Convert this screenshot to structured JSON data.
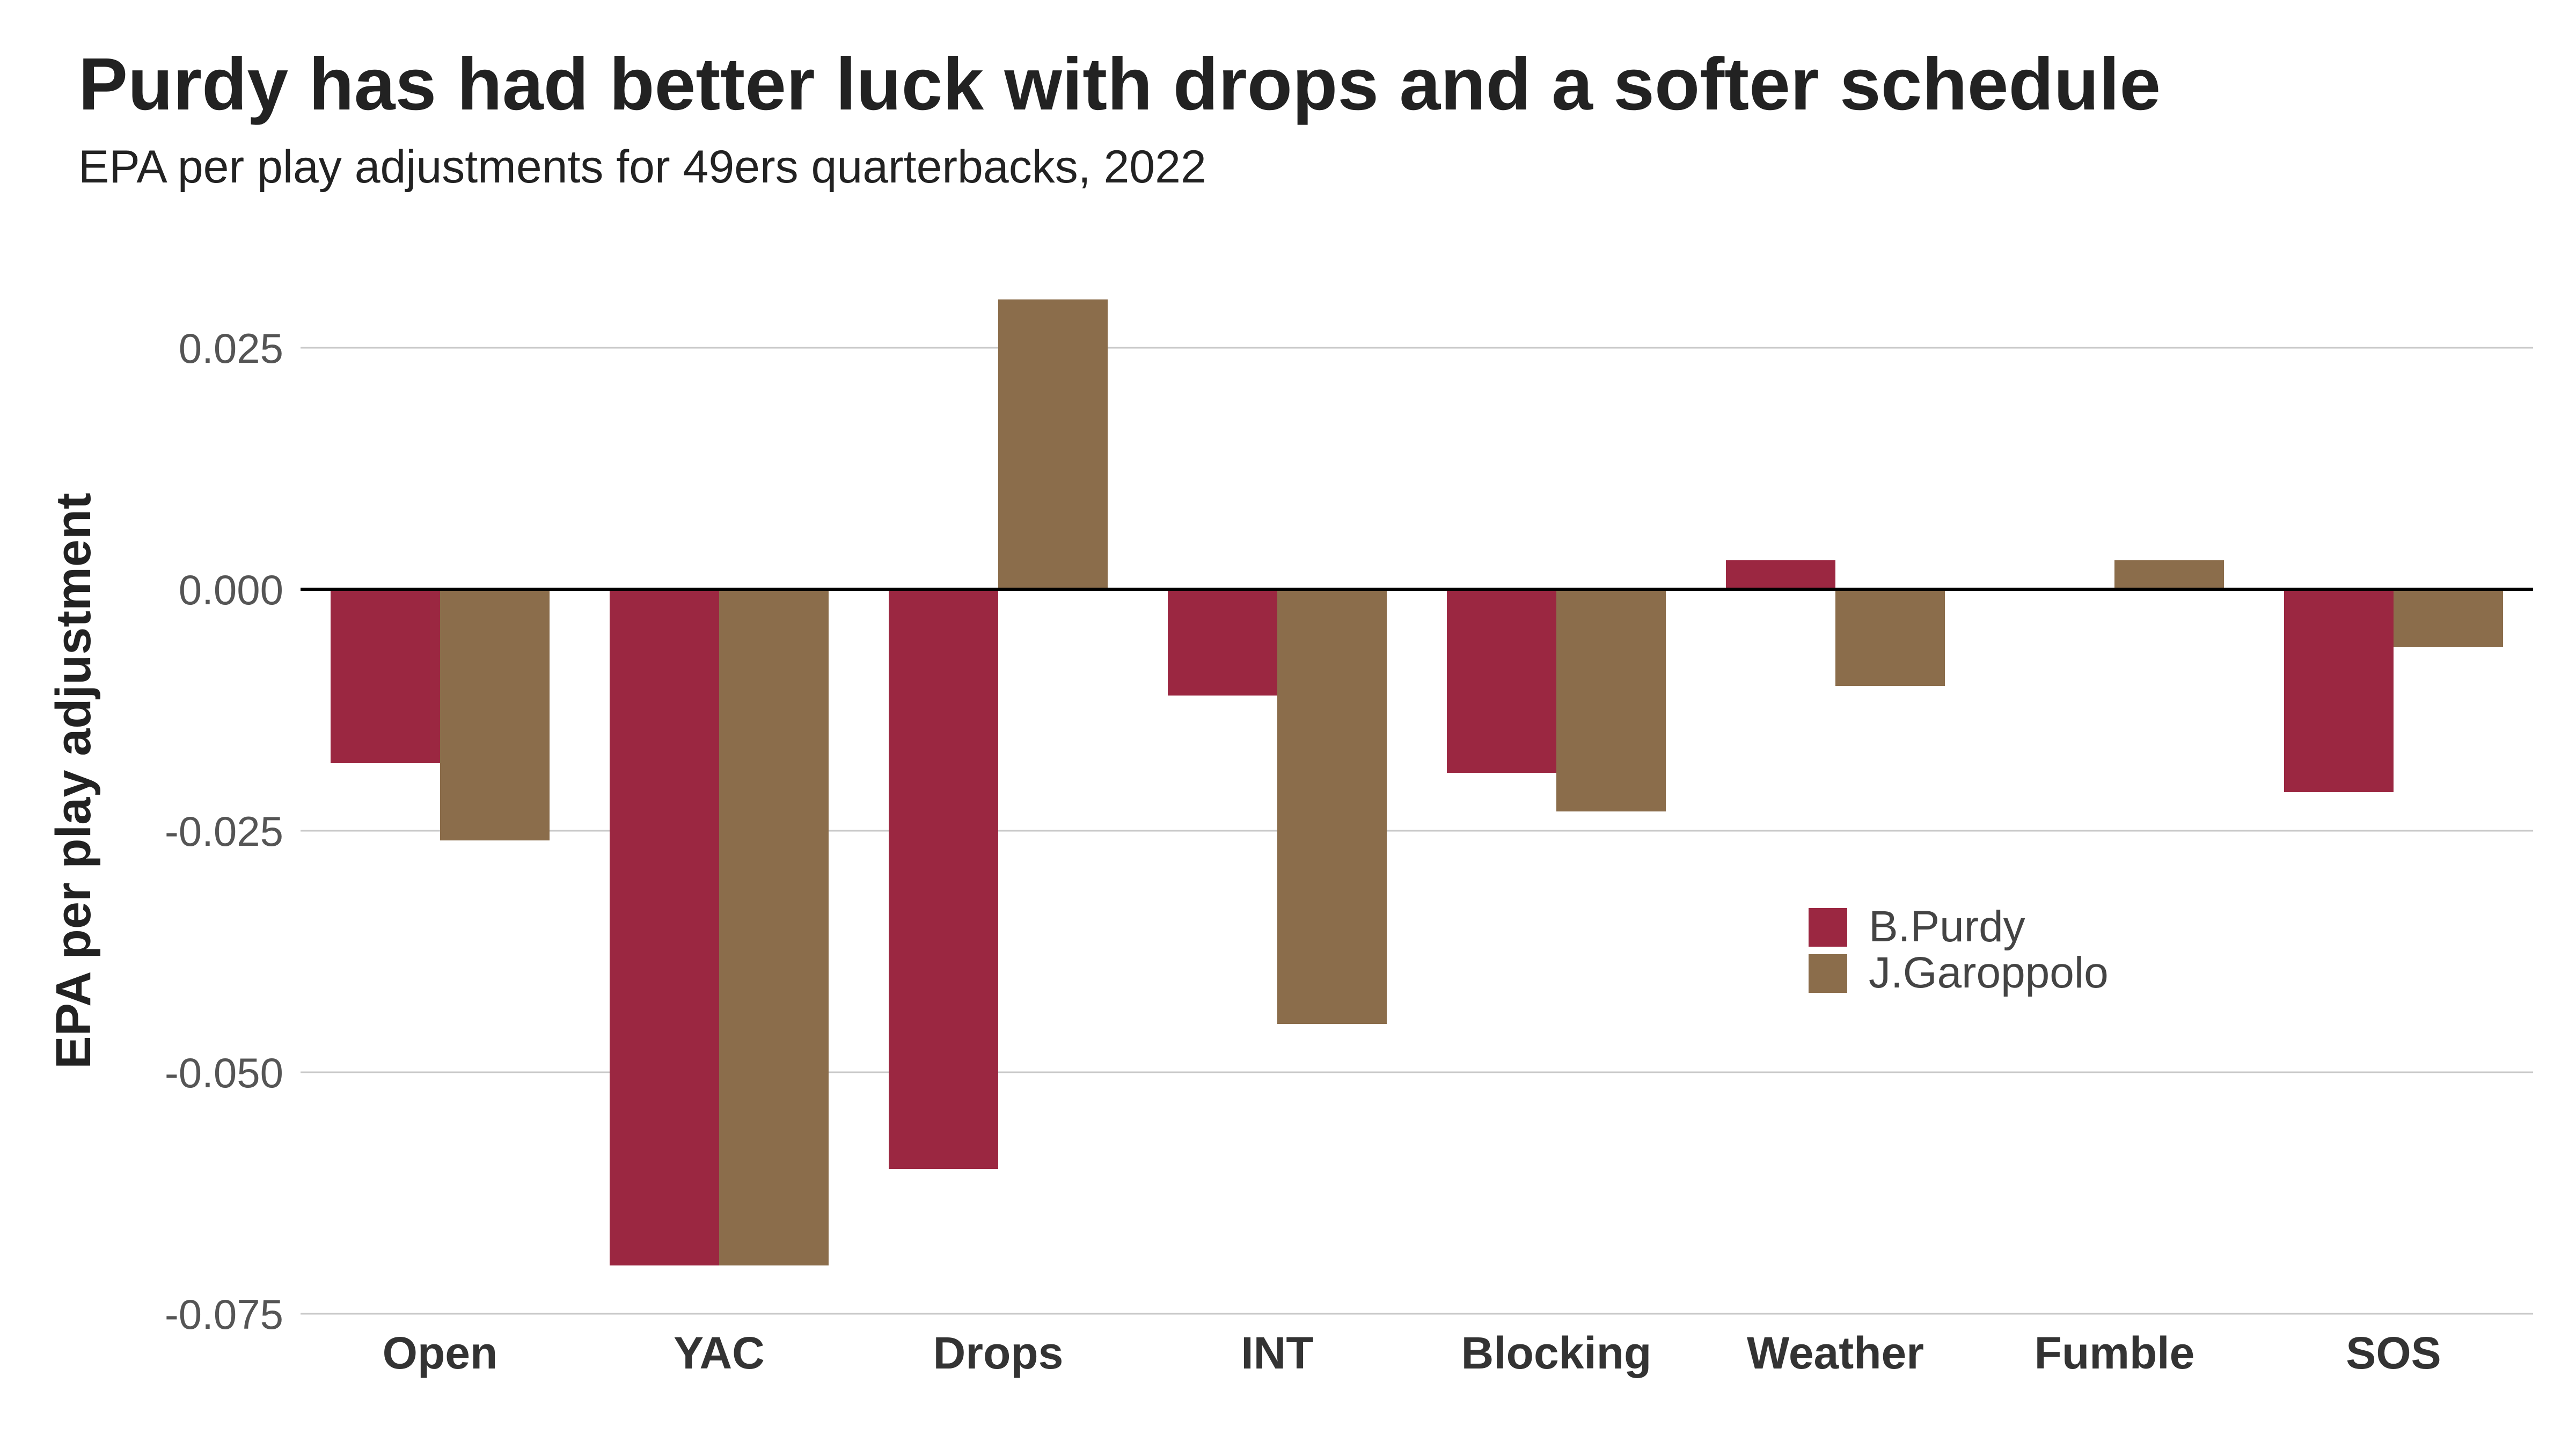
{
  "title": "Purdy has had better luck with drops and a softer schedule",
  "subtitle": "EPA per play adjustments for 49ers quarterbacks, 2022",
  "chart_data": {
    "type": "bar",
    "title": "Purdy has had better luck with drops and a softer schedule",
    "subtitle": "EPA per play adjustments for 49ers quarterbacks, 2022",
    "xlabel": "",
    "ylabel": "EPA per play adjustment",
    "categories": [
      "Open",
      "YAC",
      "Drops",
      "INT",
      "Blocking",
      "Weather",
      "Fumble",
      "SOS"
    ],
    "series": [
      {
        "name": "B.Purdy",
        "color": "#9b2741",
        "values": [
          -0.018,
          -0.07,
          -0.06,
          -0.011,
          -0.019,
          0.003,
          0.0,
          -0.021
        ]
      },
      {
        "name": "J.Garoppolo",
        "color": "#8b6d4b",
        "values": [
          -0.026,
          -0.07,
          0.03,
          -0.045,
          -0.023,
          -0.01,
          0.003,
          -0.006
        ]
      }
    ],
    "ylim": [
      -0.075,
      0.03
    ],
    "yticks": [
      -0.075,
      -0.05,
      -0.025,
      0,
      0.025
    ],
    "ytick_labels": [
      "-0.075",
      "-0.050",
      "-0.025",
      "0.000",
      "0.025"
    ],
    "grid": true,
    "legend_position": "right-middle"
  }
}
